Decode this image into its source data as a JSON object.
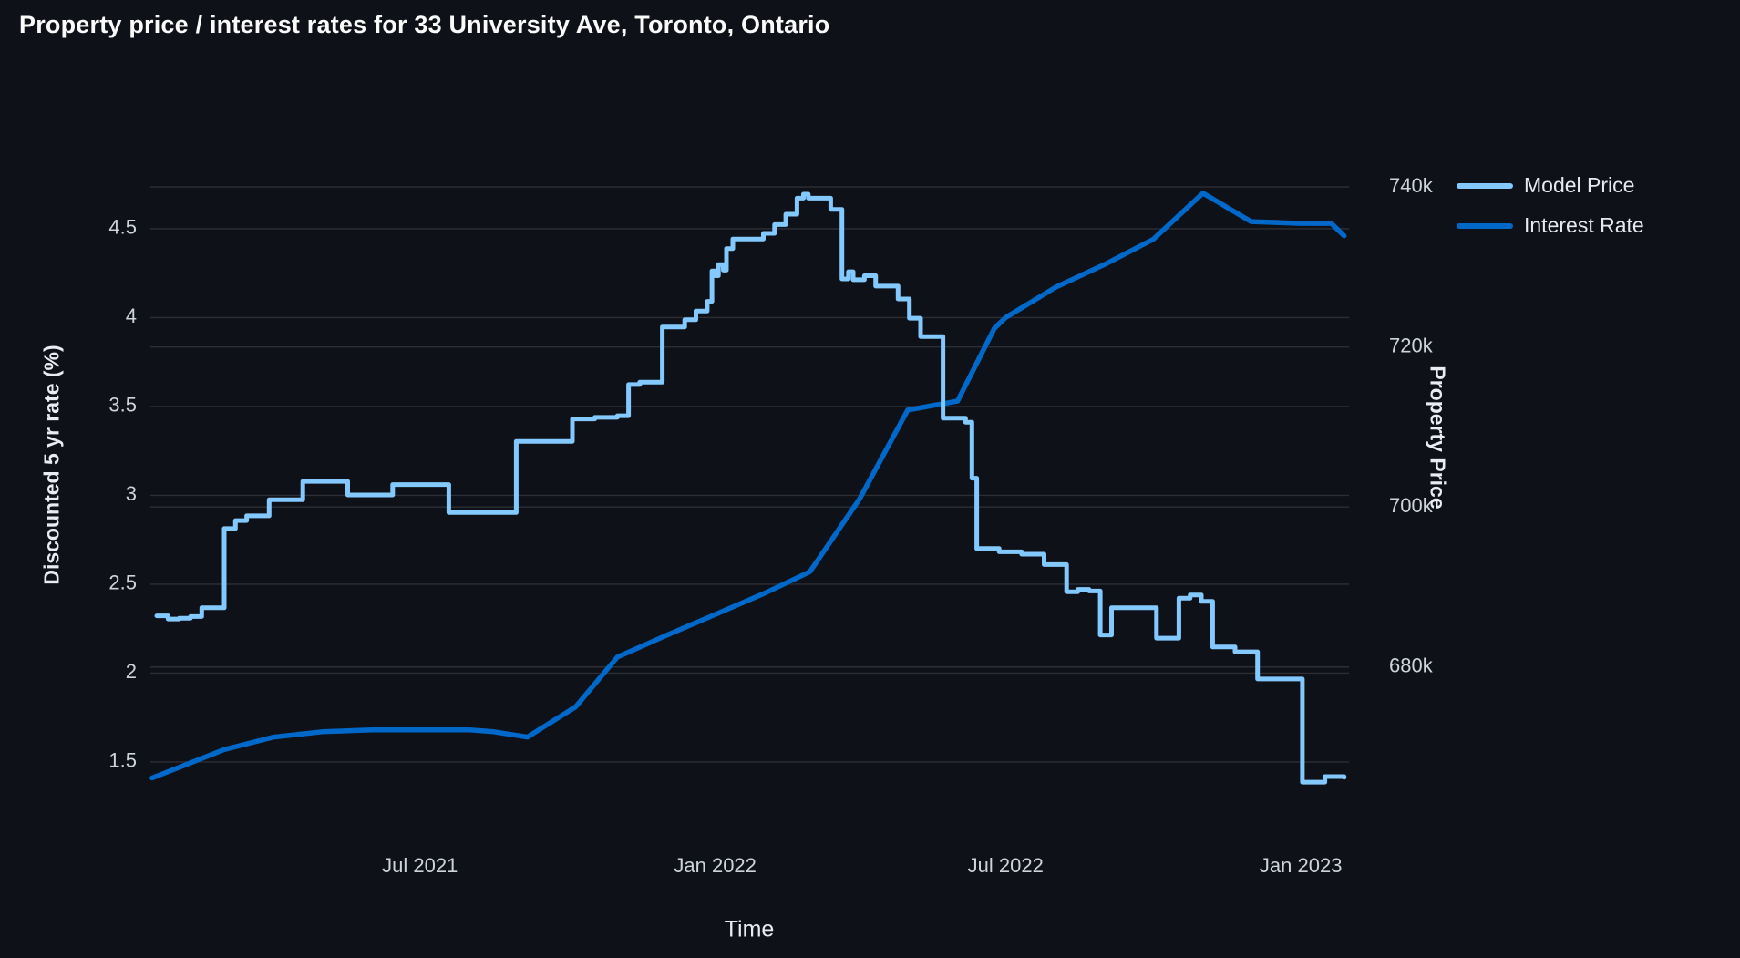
{
  "title": "Property price / interest rates for 33 University Ave, Toronto, Ontario",
  "colors": {
    "background": "#0E1117",
    "title_text": "#FAFAFA",
    "tick_text": "#CFD4DA",
    "axis_title_text": "#E9ECF1",
    "gridline": "rgba(255,255,255,0.13)",
    "model_price": "#83C9FF",
    "interest_rate": "#0068C9"
  },
  "legend": [
    {
      "label": "Model Price",
      "color": "#83C9FF"
    },
    {
      "label": "Interest Rate",
      "color": "#0068C9"
    }
  ],
  "chart_data": {
    "type": "line",
    "title": "Property price / interest rates for 33 University Ave, Toronto, Ontario",
    "xlabel": "Time",
    "ylabel_left": "Discounted 5 yr rate (%)",
    "ylabel_right": "Property Price",
    "grid": true,
    "legend_position": "top-right",
    "x_axis": {
      "range": [
        "2021-01-14",
        "2023-01-31"
      ],
      "ticks": [
        {
          "label": "Jul 2021",
          "date": "2021-07-01"
        },
        {
          "label": "Jan 2022",
          "date": "2022-01-01"
        },
        {
          "label": "Jul 2022",
          "date": "2022-07-01"
        },
        {
          "label": "Jan 2023",
          "date": "2023-01-01"
        }
      ]
    },
    "y_axis_left": {
      "range": [
        1.197,
        4.915
      ],
      "ticks": [
        {
          "label": "1.5",
          "value": 1.5
        },
        {
          "label": "2",
          "value": 2
        },
        {
          "label": "2.5",
          "value": 2.5
        },
        {
          "label": "3",
          "value": 3
        },
        {
          "label": "3.5",
          "value": 3.5
        },
        {
          "label": "4",
          "value": 4
        },
        {
          "label": "4.5",
          "value": 4.5
        }
      ]
    },
    "y_axis_right": {
      "range": [
        661.4,
        744.0
      ],
      "ticks": [
        {
          "label": "680k",
          "value": 680
        },
        {
          "label": "700k",
          "value": 700
        },
        {
          "label": "720k",
          "value": 720
        },
        {
          "label": "740k",
          "value": 740
        }
      ]
    },
    "series": [
      {
        "name": "Interest Rate",
        "axis": "left",
        "color": "#0068C9",
        "width": 5.5,
        "interpolation": "linear",
        "points": [
          [
            "2021-01-15",
            1.41
          ],
          [
            "2021-02-01",
            1.47
          ],
          [
            "2021-03-01",
            1.57
          ],
          [
            "2021-04-01",
            1.64
          ],
          [
            "2021-05-01",
            1.67
          ],
          [
            "2021-06-01",
            1.68
          ],
          [
            "2021-08-01",
            1.68
          ],
          [
            "2021-08-16",
            1.67
          ],
          [
            "2021-09-06",
            1.64
          ],
          [
            "2021-10-06",
            1.81
          ],
          [
            "2021-11-01",
            2.09
          ],
          [
            "2021-12-01",
            2.21
          ],
          [
            "2022-01-01",
            2.33
          ],
          [
            "2022-02-01",
            2.45
          ],
          [
            "2022-03-01",
            2.57
          ],
          [
            "2022-04-01",
            2.98
          ],
          [
            "2022-05-01",
            3.48
          ],
          [
            "2022-06-01",
            3.53
          ],
          [
            "2022-06-24",
            3.94
          ],
          [
            "2022-07-01",
            4.0
          ],
          [
            "2022-08-01",
            4.17
          ],
          [
            "2022-09-01",
            4.3
          ],
          [
            "2022-10-01",
            4.44
          ],
          [
            "2022-11-01",
            4.7
          ],
          [
            "2022-12-01",
            4.54
          ],
          [
            "2023-01-01",
            4.53
          ],
          [
            "2023-01-20",
            4.53
          ],
          [
            "2023-01-28",
            4.46
          ]
        ]
      },
      {
        "name": "Model Price",
        "axis": "right",
        "color": "#83C9FF",
        "width": 5,
        "interpolation": "step-after",
        "points": [
          [
            "2021-01-18",
            686.4
          ],
          [
            "2021-01-25",
            686.0
          ],
          [
            "2021-02-01",
            686.1
          ],
          [
            "2021-02-08",
            686.3
          ],
          [
            "2021-02-15",
            687.4
          ],
          [
            "2021-03-01",
            697.3
          ],
          [
            "2021-03-08",
            698.3
          ],
          [
            "2021-03-15",
            698.9
          ],
          [
            "2021-03-29",
            700.9
          ],
          [
            "2021-04-19",
            703.2
          ],
          [
            "2021-05-17",
            701.5
          ],
          [
            "2021-06-14",
            702.8
          ],
          [
            "2021-07-19",
            699.3
          ],
          [
            "2021-08-30",
            708.2
          ],
          [
            "2021-10-04",
            711.0
          ],
          [
            "2021-10-18",
            711.2
          ],
          [
            "2021-11-01",
            711.4
          ],
          [
            "2021-11-08",
            715.3
          ],
          [
            "2021-11-15",
            715.6
          ],
          [
            "2021-11-29",
            722.5
          ],
          [
            "2021-12-13",
            723.4
          ],
          [
            "2021-12-20",
            724.5
          ],
          [
            "2021-12-27",
            725.7
          ],
          [
            "2021-12-30",
            729.5
          ],
          [
            "2022-01-01",
            728.9
          ],
          [
            "2022-01-03",
            730.3
          ],
          [
            "2022-01-06",
            729.6
          ],
          [
            "2022-01-08",
            732.3
          ],
          [
            "2022-01-12",
            733.5
          ],
          [
            "2022-01-31",
            734.2
          ],
          [
            "2022-02-07",
            735.3
          ],
          [
            "2022-02-14",
            736.6
          ],
          [
            "2022-02-21",
            738.6
          ],
          [
            "2022-02-25",
            739.1
          ],
          [
            "2022-02-28",
            738.6
          ],
          [
            "2022-03-14",
            737.2
          ],
          [
            "2022-03-21",
            728.5
          ],
          [
            "2022-03-25",
            729.4
          ],
          [
            "2022-03-28",
            728.4
          ],
          [
            "2022-04-04",
            728.9
          ],
          [
            "2022-04-11",
            727.6
          ],
          [
            "2022-04-25",
            726.0
          ],
          [
            "2022-05-02",
            723.6
          ],
          [
            "2022-05-09",
            721.3
          ],
          [
            "2022-05-23",
            711.1
          ],
          [
            "2022-06-06",
            710.6
          ],
          [
            "2022-06-10",
            703.6
          ],
          [
            "2022-06-13",
            694.8
          ],
          [
            "2022-06-27",
            694.4
          ],
          [
            "2022-07-11",
            694.1
          ],
          [
            "2022-07-25",
            692.8
          ],
          [
            "2022-08-08",
            689.4
          ],
          [
            "2022-08-15",
            689.7
          ],
          [
            "2022-08-22",
            689.5
          ],
          [
            "2022-08-29",
            684.0
          ],
          [
            "2022-09-05",
            687.4
          ],
          [
            "2022-10-03",
            683.6
          ],
          [
            "2022-10-17",
            688.6
          ],
          [
            "2022-10-24",
            689.0
          ],
          [
            "2022-10-31",
            688.2
          ],
          [
            "2022-11-07",
            682.5
          ],
          [
            "2022-11-21",
            681.9
          ],
          [
            "2022-12-05",
            678.5
          ],
          [
            "2023-01-02",
            665.6
          ],
          [
            "2023-01-16",
            666.3
          ],
          [
            "2023-01-28",
            666.2
          ]
        ]
      }
    ]
  }
}
